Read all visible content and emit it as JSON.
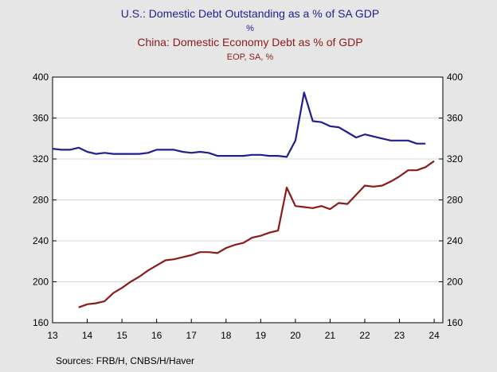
{
  "chart_data": {
    "type": "line",
    "title_us": "U.S.: Domestic Debt Outstanding as a % of SA GDP",
    "subtitle_us": "%",
    "title_china": "China: Domestic Economy Debt as % of GDP",
    "subtitle_china": "EOP, SA, %",
    "source": "Sources:  FRB/H, CNBS/H/Haver",
    "ylim": [
      160,
      400
    ],
    "xlim": [
      2013.0,
      2024.25
    ],
    "y_ticks": [
      "160",
      "200",
      "240",
      "280",
      "320",
      "360",
      "400"
    ],
    "x_ticks": [
      "13",
      "14",
      "15",
      "16",
      "17",
      "18",
      "19",
      "20",
      "21",
      "22",
      "23",
      "24"
    ],
    "colors": {
      "us": "#1f1f8f",
      "china": "#8b1a1a"
    },
    "series": [
      {
        "key": "us",
        "x": [
          2013.0,
          2013.25,
          2013.5,
          2013.75,
          2014.0,
          2014.25,
          2014.5,
          2014.75,
          2015.0,
          2015.25,
          2015.5,
          2015.75,
          2016.0,
          2016.25,
          2016.5,
          2016.75,
          2017.0,
          2017.25,
          2017.5,
          2017.75,
          2018.0,
          2018.25,
          2018.5,
          2018.75,
          2019.0,
          2019.25,
          2019.5,
          2019.75,
          2020.0,
          2020.25,
          2020.5,
          2020.75,
          2021.0,
          2021.25,
          2021.5,
          2021.75,
          2022.0,
          2022.25,
          2022.5,
          2022.75,
          2023.0,
          2023.25,
          2023.5,
          2023.75
        ],
        "values": [
          330,
          329,
          329,
          331,
          327,
          325,
          326,
          325,
          325,
          325,
          325,
          326,
          329,
          329,
          329,
          327,
          326,
          327,
          326,
          323,
          323,
          323,
          323,
          324,
          324,
          323,
          323,
          322,
          338,
          385,
          357,
          356,
          352,
          351,
          346,
          341,
          344,
          342,
          340,
          338,
          338,
          338,
          335,
          335
        ]
      },
      {
        "key": "china",
        "x": [
          2013.75,
          2014.0,
          2014.25,
          2014.5,
          2014.75,
          2015.0,
          2015.25,
          2015.5,
          2015.75,
          2016.0,
          2016.25,
          2016.5,
          2016.75,
          2017.0,
          2017.25,
          2017.5,
          2017.75,
          2018.0,
          2018.25,
          2018.5,
          2018.75,
          2019.0,
          2019.25,
          2019.5,
          2019.75,
          2020.0,
          2020.25,
          2020.5,
          2020.75,
          2021.0,
          2021.25,
          2021.5,
          2021.75,
          2022.0,
          2022.25,
          2022.5,
          2022.75,
          2023.0,
          2023.25,
          2023.5,
          2023.75,
          2024.0
        ],
        "values": [
          175,
          178,
          179,
          181,
          189,
          194,
          200,
          205,
          211,
          216,
          221,
          222,
          224,
          226,
          229,
          229,
          228,
          233,
          236,
          238,
          243,
          245,
          248,
          250,
          292,
          274,
          273,
          272,
          274,
          271,
          277,
          276,
          285,
          294,
          293,
          294,
          298,
          303,
          309,
          309,
          312,
          318
        ]
      }
    ]
  }
}
